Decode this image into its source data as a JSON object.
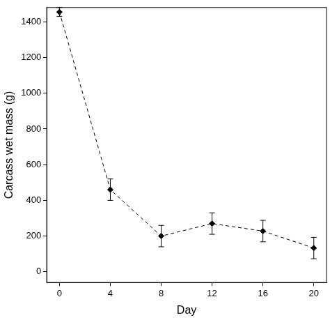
{
  "chart_data": {
    "type": "line",
    "x_label": "Day",
    "y_label": "Carcass wet mass (g)",
    "x": [
      0,
      4,
      8,
      12,
      16,
      20
    ],
    "values": [
      1455,
      460,
      200,
      270,
      228,
      133
    ],
    "errors": [
      25,
      60,
      60,
      60,
      60,
      60
    ],
    "color": "#000000",
    "marker": "diamond",
    "line_style": "dashed",
    "xlim": [
      -1,
      21
    ],
    "xticks": [
      0,
      4,
      8,
      12,
      16,
      20
    ],
    "ylim": [
      -60,
      1480
    ],
    "yticks": [
      0,
      200,
      400,
      600,
      800,
      1000,
      1200,
      1400
    ],
    "grid": false
  }
}
